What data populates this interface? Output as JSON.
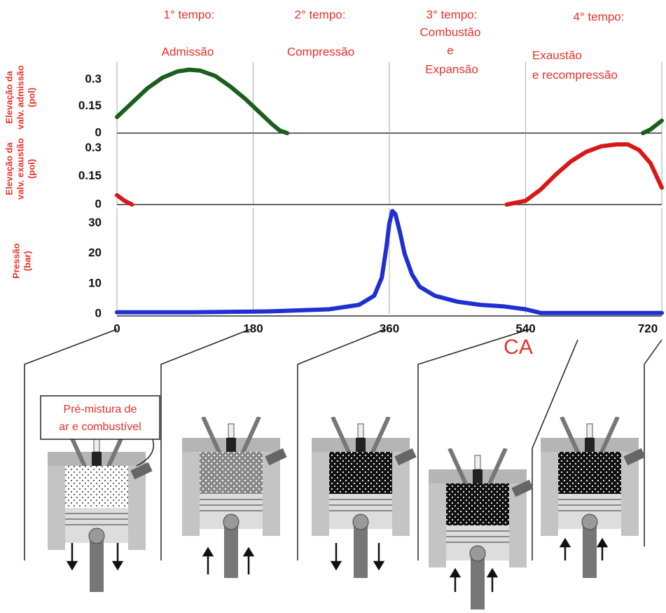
{
  "strokes": [
    {
      "title": "1° tempo:",
      "label": [
        "Admissão"
      ]
    },
    {
      "title": "2° tempo:",
      "label": [
        "Compressão"
      ]
    },
    {
      "title": "3° tempo:",
      "label": [
        "Combustão",
        "e",
        "Expansão"
      ]
    },
    {
      "title": "4° tempo:",
      "label": [
        "Exaustão",
        "e recompressão"
      ]
    }
  ],
  "callout": [
    "Pré-mistura de",
    "ar e combustível"
  ],
  "chart_data": [
    {
      "type": "line",
      "ylabel": [
        "Elevação da",
        "valv. admissão",
        "(pol)"
      ],
      "color": "#1c5e1c",
      "x": [
        0,
        20,
        40,
        60,
        80,
        95,
        110,
        130,
        150,
        170,
        190,
        205,
        215,
        225,
        460,
        695,
        705,
        720
      ],
      "values": [
        0.09,
        0.17,
        0.25,
        0.31,
        0.345,
        0.355,
        0.35,
        0.32,
        0.26,
        0.19,
        0.11,
        0.05,
        0.015,
        0,
        null,
        0,
        0.02,
        0.07
      ],
      "xlim": [
        0,
        720
      ],
      "ylim": [
        0,
        0.4
      ],
      "yticks": [
        0,
        0.15,
        0.3
      ]
    },
    {
      "type": "line",
      "ylabel": [
        "Elevação da",
        "valv. exaustão",
        "(pol)"
      ],
      "color": "#d81818",
      "x": [
        0,
        10,
        20,
        300,
        515,
        540,
        560,
        580,
        600,
        620,
        640,
        660,
        675,
        690,
        705,
        720
      ],
      "values": [
        0.05,
        0.02,
        0,
        null,
        0,
        0.02,
        0.08,
        0.16,
        0.23,
        0.28,
        0.31,
        0.32,
        0.32,
        0.29,
        0.22,
        0.09
      ],
      "xlim": [
        0,
        720
      ],
      "ylim": [
        0,
        0.38
      ],
      "yticks": [
        0,
        0.15,
        0.3
      ]
    },
    {
      "type": "line",
      "ylabel": [
        "Pressão",
        "(bar)"
      ],
      "xlabel": "CA",
      "color": "#1f2fd0",
      "x": [
        0,
        100,
        200,
        280,
        320,
        340,
        350,
        356,
        360,
        364,
        368,
        374,
        380,
        390,
        400,
        420,
        450,
        480,
        510,
        540,
        560,
        600,
        720
      ],
      "values": [
        0.5,
        0.5,
        0.8,
        1.5,
        3,
        6,
        12,
        22,
        30,
        34,
        33,
        27,
        20,
        13,
        9,
        6,
        4,
        3,
        2.5,
        1.5,
        0.3,
        0.3,
        0.3
      ],
      "xlim": [
        0,
        720
      ],
      "ylim": [
        0,
        35
      ],
      "yticks": [
        0,
        10,
        20,
        30
      ],
      "xticks": [
        0,
        180,
        360,
        540,
        720
      ]
    }
  ]
}
